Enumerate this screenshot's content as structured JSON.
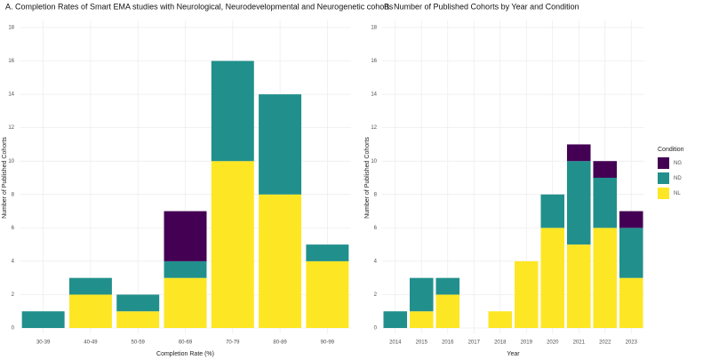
{
  "chart_data": [
    {
      "type": "bar",
      "stacked": true,
      "title": "A. Completion Rates of Smart EMA studies with Neurological, Neurodevelopmental and Neurogenetic cohorts",
      "x_label": "Completion Rate (%)",
      "y_label": "Number of Published Cohorts",
      "categories": [
        "30-39",
        "40-49",
        "50-59",
        "60-69",
        "70-79",
        "80-89",
        "90-99"
      ],
      "series": [
        {
          "name": "NL",
          "color": "#fde725",
          "values": [
            0,
            2,
            1,
            3,
            10,
            8,
            4
          ]
        },
        {
          "name": "ND",
          "color": "#21908c",
          "values": [
            1,
            1,
            1,
            1,
            6,
            6,
            1
          ]
        },
        {
          "name": "NG",
          "color": "#440154",
          "values": [
            0,
            0,
            0,
            3,
            0,
            0,
            0
          ]
        }
      ],
      "ylim": [
        0,
        18
      ],
      "yticks": [
        0,
        2,
        4,
        6,
        8,
        10,
        12,
        14,
        16,
        18
      ],
      "grid": true
    },
    {
      "type": "bar",
      "stacked": true,
      "title": "B. Number of Published Cohorts by Year and Condition",
      "x_label": "Year",
      "y_label": "Number of Published Cohorts",
      "categories": [
        "2014",
        "2015",
        "2016",
        "2017",
        "2018",
        "2019",
        "2020",
        "2021",
        "2022",
        "2023"
      ],
      "series": [
        {
          "name": "NL",
          "color": "#fde725",
          "values": [
            0,
            1,
            2,
            0,
            1,
            4,
            6,
            5,
            6,
            3
          ]
        },
        {
          "name": "ND",
          "color": "#21908c",
          "values": [
            1,
            2,
            1,
            0,
            0,
            0,
            2,
            5,
            3,
            3
          ]
        },
        {
          "name": "NG",
          "color": "#440154",
          "values": [
            0,
            0,
            0,
            0,
            0,
            0,
            0,
            1,
            1,
            1
          ]
        }
      ],
      "ylim": [
        0,
        18
      ],
      "yticks": [
        0,
        2,
        4,
        6,
        8,
        10,
        12,
        14,
        16,
        18
      ],
      "grid": true,
      "legend_title": "Condition",
      "legend": "right"
    }
  ]
}
